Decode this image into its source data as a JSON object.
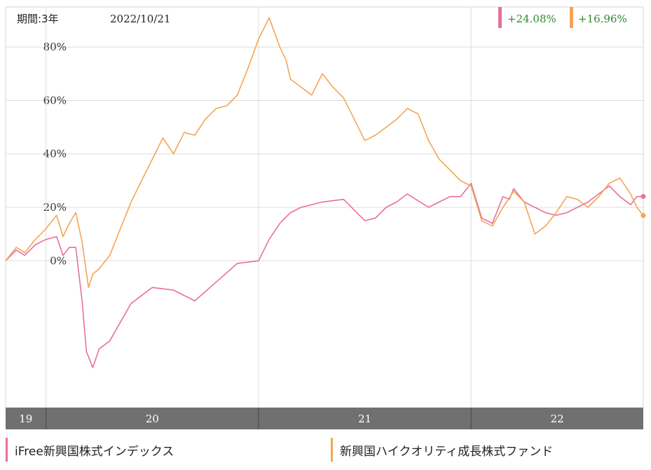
{
  "header": {
    "period_label": "期間:3年",
    "date_label": "2022/10/21",
    "returns": [
      {
        "value": "+24.08%",
        "color": "#e8709c"
      },
      {
        "value": "+16.96%",
        "color": "#f4a555"
      }
    ]
  },
  "legend": [
    {
      "label": "iFree新興国株式インデックス",
      "color": "#e8709c"
    },
    {
      "label": "新興国ハイクオリティ成長株式ファンド",
      "color": "#f4a555"
    }
  ],
  "colors": {
    "text_value": "#2e8b2e",
    "axis_band": "#707070",
    "grid": "#dddddd"
  },
  "chart_data": {
    "type": "line",
    "title": "",
    "xlabel": "",
    "ylabel": "",
    "ylim": [
      -55,
      95
    ],
    "xlim": [
      2019.81,
      2022.81
    ],
    "y_ticks": [
      {
        "value": 80,
        "label": "80%"
      },
      {
        "value": 60,
        "label": "60%"
      },
      {
        "value": 40,
        "label": "40%"
      },
      {
        "value": 20,
        "label": "20%"
      },
      {
        "value": 0,
        "label": "0%"
      }
    ],
    "x_year_bands": [
      {
        "label": "19",
        "start": 2019.81,
        "end": 2020.0
      },
      {
        "label": "20",
        "start": 2020.0,
        "end": 2021.0
      },
      {
        "label": "21",
        "start": 2021.0,
        "end": 2022.0
      },
      {
        "label": "22",
        "start": 2022.0,
        "end": 2022.81
      }
    ],
    "grid": true,
    "legend_position": "bottom",
    "series": [
      {
        "name": "iFree新興国株式インデックス",
        "color": "#e8709c",
        "x": [
          2019.81,
          2019.86,
          2019.9,
          2019.95,
          2020.0,
          2020.05,
          2020.08,
          2020.11,
          2020.14,
          2020.17,
          2020.19,
          2020.22,
          2020.25,
          2020.3,
          2020.4,
          2020.5,
          2020.6,
          2020.7,
          2020.8,
          2020.9,
          2021.0,
          2021.05,
          2021.1,
          2021.15,
          2021.2,
          2021.3,
          2021.4,
          2021.45,
          2021.5,
          2021.55,
          2021.6,
          2021.65,
          2021.7,
          2021.8,
          2021.85,
          2021.9,
          2021.95,
          2022.0,
          2022.05,
          2022.1,
          2022.13,
          2022.15,
          2022.18,
          2022.2,
          2022.25,
          2022.3,
          2022.35,
          2022.4,
          2022.45,
          2022.5,
          2022.55,
          2022.6,
          2022.65,
          2022.7,
          2022.75,
          2022.78,
          2022.81
        ],
        "values": [
          0,
          4,
          2,
          6,
          8,
          9,
          2,
          5,
          5,
          -15,
          -34,
          -40,
          -33,
          -30,
          -16,
          -10,
          -11,
          -15,
          -8,
          -1,
          0,
          8,
          14,
          18,
          20,
          22,
          23,
          19,
          15,
          16,
          20,
          22,
          25,
          20,
          22,
          24,
          24,
          29,
          16,
          14,
          20,
          24,
          23,
          27,
          22,
          20,
          18,
          17,
          18,
          20,
          22,
          25,
          28,
          24,
          21,
          24,
          24.08
        ]
      },
      {
        "name": "新興国ハイクオリティ成長株式ファンド",
        "color": "#f4a555",
        "x": [
          2019.81,
          2019.86,
          2019.9,
          2019.95,
          2020.0,
          2020.05,
          2020.08,
          2020.11,
          2020.14,
          2020.17,
          2020.2,
          2020.22,
          2020.25,
          2020.3,
          2020.35,
          2020.4,
          2020.45,
          2020.5,
          2020.55,
          2020.6,
          2020.65,
          2020.7,
          2020.75,
          2020.8,
          2020.85,
          2020.9,
          2020.95,
          2021.0,
          2021.05,
          2021.1,
          2021.13,
          2021.15,
          2021.2,
          2021.25,
          2021.3,
          2021.35,
          2021.4,
          2021.45,
          2021.5,
          2021.55,
          2021.6,
          2021.65,
          2021.7,
          2021.75,
          2021.8,
          2021.85,
          2021.9,
          2021.95,
          2022.0,
          2022.05,
          2022.1,
          2022.15,
          2022.2,
          2022.25,
          2022.3,
          2022.35,
          2022.4,
          2022.45,
          2022.5,
          2022.55,
          2022.6,
          2022.65,
          2022.7,
          2022.75,
          2022.78,
          2022.81
        ],
        "values": [
          0,
          5,
          3,
          8,
          12,
          17,
          9,
          14,
          18,
          7,
          -10,
          -5,
          -3,
          2,
          12,
          22,
          30,
          38,
          46,
          40,
          48,
          47,
          53,
          57,
          58,
          62,
          72,
          83,
          91,
          80,
          75,
          68,
          65,
          62,
          70,
          65,
          61,
          53,
          45,
          47,
          50,
          53,
          57,
          55,
          45,
          38,
          34,
          30,
          28,
          15,
          13,
          20,
          26,
          22,
          10,
          13,
          18,
          24,
          23,
          20,
          24,
          29,
          31,
          25,
          20,
          16.96
        ]
      }
    ]
  }
}
